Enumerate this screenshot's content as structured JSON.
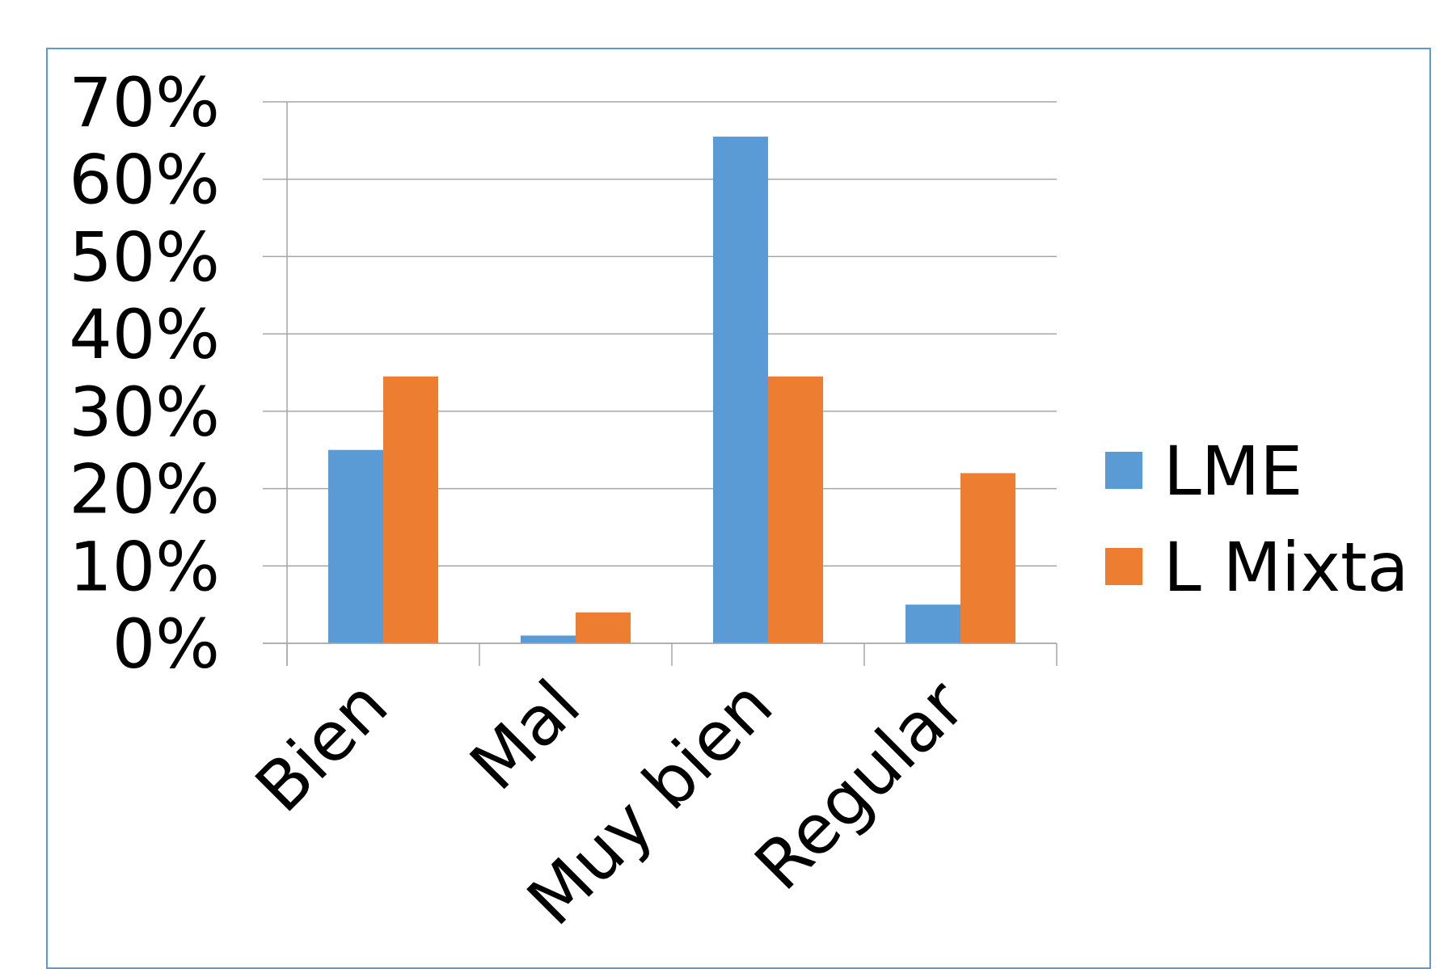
{
  "chart_data": {
    "type": "bar",
    "categories": [
      "Bien",
      "Mal",
      "Muy bien",
      "Regular"
    ],
    "series": [
      {
        "name": "LME",
        "values": [
          25,
          1,
          65.5,
          5
        ],
        "color": "#5B9BD5"
      },
      {
        "name": "L Mixta",
        "values": [
          34.5,
          4,
          34.5,
          22
        ],
        "color": "#ED7D31"
      }
    ],
    "ylim": [
      0,
      70
    ],
    "yticks": [
      0,
      10,
      20,
      30,
      40,
      50,
      60,
      70
    ],
    "ytick_labels": [
      "0%",
      "10%",
      "20%",
      "30%",
      "40%",
      "50%",
      "60%",
      "70%"
    ],
    "grid": true,
    "legend_position": "right",
    "frame_color": "#5B9BD5"
  }
}
